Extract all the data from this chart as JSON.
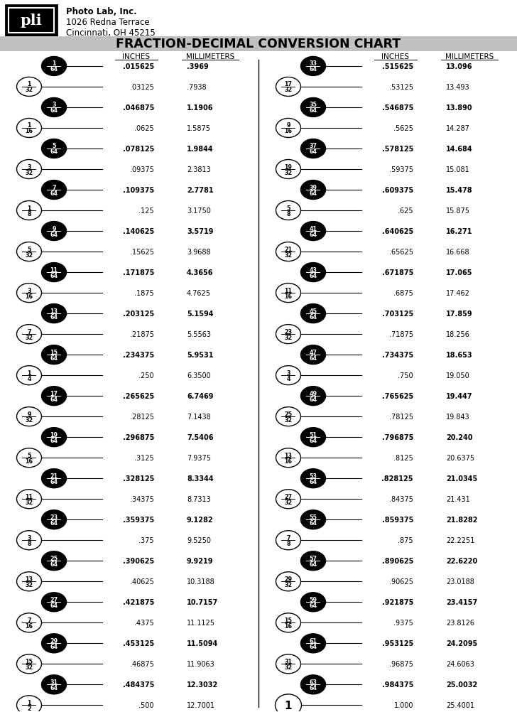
{
  "title": "FRACTION-DECIMAL CONVERSION CHART",
  "company_name": "Photo Lab, Inc.",
  "company_addr1": "1026 Redna Terrace",
  "company_addr2": "Cincinnati, OH 45215",
  "header_bg": "#c0c0c0",
  "bg_color": "#ffffff",
  "col_header_inches": "INCHES",
  "col_header_mm": "MILLIMETERS",
  "left_rows": [
    {
      "frac_num": "1",
      "frac_den": "64",
      "black": true,
      "inch": ".015625",
      "mm": ".3969",
      "bold": true
    },
    {
      "frac_num": "1",
      "frac_den": "32",
      "black": false,
      "inch": ".03125",
      "mm": ".7938",
      "bold": false
    },
    {
      "frac_num": "3",
      "frac_den": "64",
      "black": true,
      "inch": ".046875",
      "mm": "1.1906",
      "bold": true
    },
    {
      "frac_num": "1",
      "frac_den": "16",
      "black": false,
      "inch": ".0625",
      "mm": "1.5875",
      "bold": false
    },
    {
      "frac_num": "5",
      "frac_den": "64",
      "black": true,
      "inch": ".078125",
      "mm": "1.9844",
      "bold": true
    },
    {
      "frac_num": "3",
      "frac_den": "32",
      "black": false,
      "inch": ".09375",
      "mm": "2.3813",
      "bold": false
    },
    {
      "frac_num": "7",
      "frac_den": "64",
      "black": true,
      "inch": ".109375",
      "mm": "2.7781",
      "bold": true
    },
    {
      "frac_num": "1",
      "frac_den": "8",
      "black": false,
      "inch": ".125",
      "mm": "3.1750",
      "bold": false
    },
    {
      "frac_num": "9",
      "frac_den": "64",
      "black": true,
      "inch": ".140625",
      "mm": "3.5719",
      "bold": true
    },
    {
      "frac_num": "5",
      "frac_den": "32",
      "black": false,
      "inch": ".15625",
      "mm": "3.9688",
      "bold": false
    },
    {
      "frac_num": "11",
      "frac_den": "64",
      "black": true,
      "inch": ".171875",
      "mm": "4.3656",
      "bold": true
    },
    {
      "frac_num": "3",
      "frac_den": "16",
      "black": false,
      "inch": ".1875",
      "mm": "4.7625",
      "bold": false
    },
    {
      "frac_num": "13",
      "frac_den": "64",
      "black": true,
      "inch": ".203125",
      "mm": "5.1594",
      "bold": true
    },
    {
      "frac_num": "7",
      "frac_den": "32",
      "black": false,
      "inch": ".21875",
      "mm": "5.5563",
      "bold": false
    },
    {
      "frac_num": "15",
      "frac_den": "64",
      "black": true,
      "inch": ".234375",
      "mm": "5.9531",
      "bold": true
    },
    {
      "frac_num": "1",
      "frac_den": "4",
      "black": false,
      "inch": ".250",
      "mm": "6.3500",
      "bold": false
    },
    {
      "frac_num": "17",
      "frac_den": "64",
      "black": true,
      "inch": ".265625",
      "mm": "6.7469",
      "bold": true
    },
    {
      "frac_num": "9",
      "frac_den": "32",
      "black": false,
      "inch": ".28125",
      "mm": "7.1438",
      "bold": false
    },
    {
      "frac_num": "19",
      "frac_den": "64",
      "black": true,
      "inch": ".296875",
      "mm": "7.5406",
      "bold": true
    },
    {
      "frac_num": "5",
      "frac_den": "16",
      "black": false,
      "inch": ".3125",
      "mm": "7.9375",
      "bold": false
    },
    {
      "frac_num": "21",
      "frac_den": "64",
      "black": true,
      "inch": ".328125",
      "mm": "8.3344",
      "bold": true
    },
    {
      "frac_num": "11",
      "frac_den": "32",
      "black": false,
      "inch": ".34375",
      "mm": "8.7313",
      "bold": false
    },
    {
      "frac_num": "23",
      "frac_den": "64",
      "black": true,
      "inch": ".359375",
      "mm": "9.1282",
      "bold": true
    },
    {
      "frac_num": "3",
      "frac_den": "8",
      "black": false,
      "inch": ".375",
      "mm": "9.5250",
      "bold": false
    },
    {
      "frac_num": "25",
      "frac_den": "64",
      "black": true,
      "inch": ".390625",
      "mm": "9.9219",
      "bold": true
    },
    {
      "frac_num": "13",
      "frac_den": "32",
      "black": false,
      "inch": ".40625",
      "mm": "10.3188",
      "bold": false
    },
    {
      "frac_num": "27",
      "frac_den": "64",
      "black": true,
      "inch": ".421875",
      "mm": "10.7157",
      "bold": true
    },
    {
      "frac_num": "7",
      "frac_den": "16",
      "black": false,
      "inch": ".4375",
      "mm": "11.1125",
      "bold": false
    },
    {
      "frac_num": "29",
      "frac_den": "64",
      "black": true,
      "inch": ".453125",
      "mm": "11.5094",
      "bold": true
    },
    {
      "frac_num": "15",
      "frac_den": "32",
      "black": false,
      "inch": ".46875",
      "mm": "11.9063",
      "bold": false
    },
    {
      "frac_num": "31",
      "frac_den": "64",
      "black": true,
      "inch": ".484375",
      "mm": "12.3032",
      "bold": true
    },
    {
      "frac_num": "1",
      "frac_den": "2",
      "black": false,
      "inch": ".500",
      "mm": "12.7001",
      "bold": false
    }
  ],
  "right_rows": [
    {
      "frac_num": "33",
      "frac_den": "64",
      "black": true,
      "inch": ".515625",
      "mm": "13.096",
      "bold": true
    },
    {
      "frac_num": "17",
      "frac_den": "32",
      "black": false,
      "inch": ".53125",
      "mm": "13.493",
      "bold": false
    },
    {
      "frac_num": "35",
      "frac_den": "64",
      "black": true,
      "inch": ".546875",
      "mm": "13.890",
      "bold": true
    },
    {
      "frac_num": "9",
      "frac_den": "16",
      "black": false,
      "inch": ".5625",
      "mm": "14.287",
      "bold": false
    },
    {
      "frac_num": "37",
      "frac_den": "64",
      "black": true,
      "inch": ".578125",
      "mm": "14.684",
      "bold": true
    },
    {
      "frac_num": "19",
      "frac_den": "32",
      "black": false,
      "inch": ".59375",
      "mm": "15.081",
      "bold": false
    },
    {
      "frac_num": "39",
      "frac_den": "64",
      "black": true,
      "inch": ".609375",
      "mm": "15.478",
      "bold": true
    },
    {
      "frac_num": "5",
      "frac_den": "8",
      "black": false,
      "inch": ".625",
      "mm": "15.875",
      "bold": false
    },
    {
      "frac_num": "41",
      "frac_den": "64",
      "black": true,
      "inch": ".640625",
      "mm": "16.271",
      "bold": true
    },
    {
      "frac_num": "21",
      "frac_den": "32",
      "black": false,
      "inch": ".65625",
      "mm": "16.668",
      "bold": false
    },
    {
      "frac_num": "43",
      "frac_den": "64",
      "black": true,
      "inch": ".671875",
      "mm": "17.065",
      "bold": true
    },
    {
      "frac_num": "11",
      "frac_den": "16",
      "black": false,
      "inch": ".6875",
      "mm": "17.462",
      "bold": false
    },
    {
      "frac_num": "45",
      "frac_den": "64",
      "black": true,
      "inch": ".703125",
      "mm": "17.859",
      "bold": true
    },
    {
      "frac_num": "23",
      "frac_den": "32",
      "black": false,
      "inch": ".71875",
      "mm": "18.256",
      "bold": false
    },
    {
      "frac_num": "47",
      "frac_den": "64",
      "black": true,
      "inch": ".734375",
      "mm": "18.653",
      "bold": true
    },
    {
      "frac_num": "3",
      "frac_den": "4",
      "black": false,
      "inch": ".750",
      "mm": "19.050",
      "bold": false
    },
    {
      "frac_num": "49",
      "frac_den": "64",
      "black": true,
      "inch": ".765625",
      "mm": "19.447",
      "bold": true
    },
    {
      "frac_num": "25",
      "frac_den": "32",
      "black": false,
      "inch": ".78125",
      "mm": "19.843",
      "bold": false
    },
    {
      "frac_num": "51",
      "frac_den": "64",
      "black": true,
      "inch": ".796875",
      "mm": "20.240",
      "bold": true
    },
    {
      "frac_num": "13",
      "frac_den": "16",
      "black": false,
      "inch": ".8125",
      "mm": "20.6375",
      "bold": false
    },
    {
      "frac_num": "53",
      "frac_den": "64",
      "black": true,
      "inch": ".828125",
      "mm": "21.0345",
      "bold": true
    },
    {
      "frac_num": "27",
      "frac_den": "32",
      "black": false,
      "inch": ".84375",
      "mm": "21.431",
      "bold": false
    },
    {
      "frac_num": "55",
      "frac_den": "64",
      "black": true,
      "inch": ".859375",
      "mm": "21.8282",
      "bold": true
    },
    {
      "frac_num": "7",
      "frac_den": "8",
      "black": false,
      "inch": ".875",
      "mm": "22.2251",
      "bold": false
    },
    {
      "frac_num": "57",
      "frac_den": "64",
      "black": true,
      "inch": ".890625",
      "mm": "22.6220",
      "bold": true
    },
    {
      "frac_num": "29",
      "frac_den": "32",
      "black": false,
      "inch": ".90625",
      "mm": "23.0188",
      "bold": false
    },
    {
      "frac_num": "59",
      "frac_den": "64",
      "black": true,
      "inch": ".921875",
      "mm": "23.4157",
      "bold": true
    },
    {
      "frac_num": "15",
      "frac_den": "16",
      "black": false,
      "inch": ".9375",
      "mm": "23.8126",
      "bold": false
    },
    {
      "frac_num": "61",
      "frac_den": "64",
      "black": true,
      "inch": ".953125",
      "mm": "24.2095",
      "bold": true
    },
    {
      "frac_num": "31",
      "frac_den": "32",
      "black": false,
      "inch": ".96875",
      "mm": "24.6063",
      "bold": false
    },
    {
      "frac_num": "63",
      "frac_den": "64",
      "black": true,
      "inch": ".984375",
      "mm": "25.0032",
      "bold": true
    },
    {
      "frac_num": "1",
      "frac_den": "",
      "black": false,
      "inch": "1.000",
      "mm": "25.4001",
      "bold": false
    }
  ]
}
